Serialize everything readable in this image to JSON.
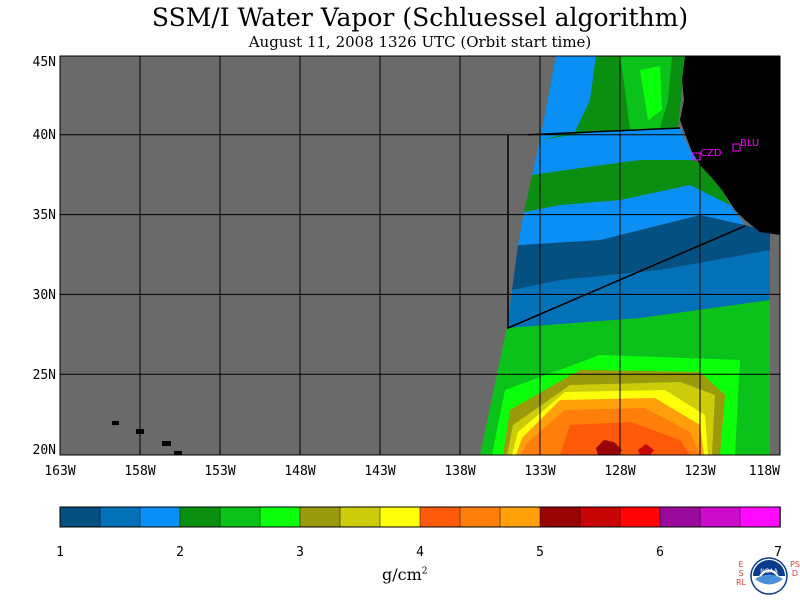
{
  "title": "SSM/I Water Vapor (Schluessel algorithm)",
  "subtitle": "August 11, 2008  1326 UTC  (Orbit start time)",
  "map": {
    "extent": {
      "lon_min": -163,
      "lon_max": -118,
      "lat_min": 20,
      "lat_max": 45
    },
    "latitude_labels": [
      "45N",
      "40N",
      "35N",
      "30N",
      "25N",
      "20N"
    ],
    "longitude_labels": [
      "163W",
      "158W",
      "153W",
      "148W",
      "143W",
      "138W",
      "133W",
      "128W",
      "123W",
      "118W"
    ],
    "stations": [
      {
        "code": "CZD",
        "lon": -123.1,
        "lat": 38.6
      },
      {
        "code": "BLU",
        "lon": -120.8,
        "lat": 39.3
      }
    ]
  },
  "colorbar": {
    "ticks": [
      "1",
      "2",
      "3",
      "4",
      "5",
      "6",
      "7"
    ],
    "units": "g/cm",
    "units_exp": "2",
    "colors": [
      "#035081",
      "#0371b8",
      "#0a8ff5",
      "#0b8f11",
      "#0bc21a",
      "#0aff0a",
      "#9a9a0a",
      "#cccc0a",
      "#ffff0a",
      "#ff5a0a",
      "#ff7f0a",
      "#ffa00a",
      "#990505",
      "#c80505",
      "#ff0505",
      "#9a0a9a",
      "#cc0acc",
      "#ff0aff"
    ]
  },
  "logo": {
    "left_text": "ESRL",
    "right_text": "PSD",
    "badge_text": "NOAA"
  }
}
